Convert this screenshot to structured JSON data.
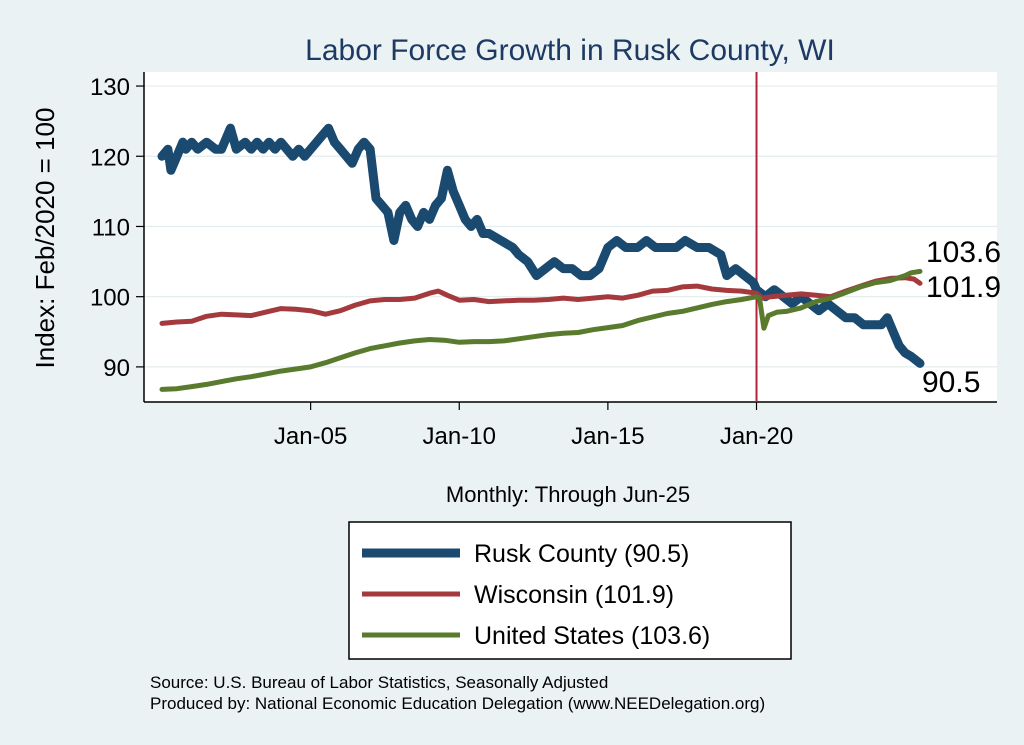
{
  "chart_data": {
    "type": "line",
    "title": "Labor Force Growth in Rusk  County, WI",
    "ylabel": "Index: Feb/2020 = 100",
    "xlabel": "Monthly: Through Jun-25",
    "ylim": [
      85,
      132
    ],
    "yticks": [
      90,
      100,
      110,
      120,
      130
    ],
    "xticks": [
      {
        "label": "Jan-05",
        "year": 2005.0
      },
      {
        "label": "Jan-10",
        "year": 2010.0
      },
      {
        "label": "Jan-15",
        "year": 2015.0
      },
      {
        "label": "Jan-20",
        "year": 2020.0
      }
    ],
    "xlim": [
      2000.0,
      2025.5
    ],
    "vline": {
      "year": 2020.0,
      "color": "#b0243c"
    },
    "grid": true,
    "legend_position": "bottom",
    "series": [
      {
        "name": "Rusk  County (90.5)",
        "color": "#1b4a70",
        "end_label": "90.5",
        "points": [
          [
            2000.0,
            120
          ],
          [
            2000.2,
            121
          ],
          [
            2000.3,
            118
          ],
          [
            2000.5,
            120
          ],
          [
            2000.7,
            122
          ],
          [
            2000.8,
            121
          ],
          [
            2001.0,
            122
          ],
          [
            2001.2,
            121
          ],
          [
            2001.5,
            122
          ],
          [
            2001.8,
            121
          ],
          [
            2002.0,
            121
          ],
          [
            2002.3,
            124
          ],
          [
            2002.5,
            121
          ],
          [
            2002.8,
            122
          ],
          [
            2003.0,
            121
          ],
          [
            2003.2,
            122
          ],
          [
            2003.4,
            121
          ],
          [
            2003.6,
            122
          ],
          [
            2003.8,
            121
          ],
          [
            2004.0,
            122
          ],
          [
            2004.2,
            121
          ],
          [
            2004.4,
            120
          ],
          [
            2004.6,
            121
          ],
          [
            2004.8,
            120
          ],
          [
            2005.0,
            121
          ],
          [
            2005.2,
            122
          ],
          [
            2005.4,
            123
          ],
          [
            2005.6,
            124
          ],
          [
            2005.8,
            122
          ],
          [
            2006.0,
            121
          ],
          [
            2006.2,
            120
          ],
          [
            2006.4,
            119
          ],
          [
            2006.6,
            121
          ],
          [
            2006.8,
            122
          ],
          [
            2007.0,
            121
          ],
          [
            2007.2,
            114
          ],
          [
            2007.4,
            113
          ],
          [
            2007.6,
            112
          ],
          [
            2007.8,
            108
          ],
          [
            2008.0,
            112
          ],
          [
            2008.2,
            113
          ],
          [
            2008.4,
            111
          ],
          [
            2008.6,
            110
          ],
          [
            2008.8,
            112
          ],
          [
            2009.0,
            111
          ],
          [
            2009.2,
            113
          ],
          [
            2009.4,
            114
          ],
          [
            2009.6,
            118
          ],
          [
            2009.8,
            115
          ],
          [
            2010.0,
            113
          ],
          [
            2010.2,
            111
          ],
          [
            2010.4,
            110
          ],
          [
            2010.6,
            111
          ],
          [
            2010.8,
            109
          ],
          [
            2011.0,
            109
          ],
          [
            2011.4,
            108
          ],
          [
            2011.8,
            107
          ],
          [
            2012.0,
            106
          ],
          [
            2012.3,
            105
          ],
          [
            2012.6,
            103
          ],
          [
            2012.9,
            104
          ],
          [
            2013.2,
            105
          ],
          [
            2013.5,
            104
          ],
          [
            2013.8,
            104
          ],
          [
            2014.1,
            103
          ],
          [
            2014.4,
            103
          ],
          [
            2014.7,
            104
          ],
          [
            2015.0,
            107
          ],
          [
            2015.3,
            108
          ],
          [
            2015.6,
            107
          ],
          [
            2016.0,
            107
          ],
          [
            2016.3,
            108
          ],
          [
            2016.6,
            107
          ],
          [
            2017.0,
            107
          ],
          [
            2017.3,
            107
          ],
          [
            2017.6,
            108
          ],
          [
            2018.0,
            107
          ],
          [
            2018.4,
            107
          ],
          [
            2018.8,
            106
          ],
          [
            2019.0,
            103
          ],
          [
            2019.3,
            104
          ],
          [
            2019.6,
            103
          ],
          [
            2019.9,
            102
          ],
          [
            2020.0,
            101
          ],
          [
            2020.3,
            100
          ],
          [
            2020.6,
            101
          ],
          [
            2020.9,
            100
          ],
          [
            2021.2,
            99
          ],
          [
            2021.5,
            100
          ],
          [
            2021.8,
            99
          ],
          [
            2022.1,
            98
          ],
          [
            2022.4,
            99
          ],
          [
            2022.7,
            98
          ],
          [
            2023.0,
            97
          ],
          [
            2023.3,
            97
          ],
          [
            2023.6,
            96
          ],
          [
            2023.9,
            96
          ],
          [
            2024.2,
            96
          ],
          [
            2024.4,
            97
          ],
          [
            2024.6,
            95
          ],
          [
            2024.8,
            93
          ],
          [
            2025.0,
            92
          ],
          [
            2025.2,
            91.5
          ],
          [
            2025.5,
            90.5
          ]
        ]
      },
      {
        "name": "Wisconsin (101.9)",
        "color": "#a43a3e",
        "end_label": "101.9",
        "points": [
          [
            2000.0,
            96.2
          ],
          [
            2000.5,
            96.4
          ],
          [
            2001.0,
            96.5
          ],
          [
            2001.5,
            97.2
          ],
          [
            2002.0,
            97.5
          ],
          [
            2002.5,
            97.4
          ],
          [
            2003.0,
            97.3
          ],
          [
            2003.5,
            97.8
          ],
          [
            2004.0,
            98.3
          ],
          [
            2004.5,
            98.2
          ],
          [
            2005.0,
            98.0
          ],
          [
            2005.5,
            97.5
          ],
          [
            2006.0,
            98.0
          ],
          [
            2006.5,
            98.8
          ],
          [
            2007.0,
            99.4
          ],
          [
            2007.5,
            99.6
          ],
          [
            2008.0,
            99.6
          ],
          [
            2008.5,
            99.8
          ],
          [
            2009.0,
            100.5
          ],
          [
            2009.3,
            100.8
          ],
          [
            2009.6,
            100.2
          ],
          [
            2010.0,
            99.5
          ],
          [
            2010.5,
            99.6
          ],
          [
            2011.0,
            99.3
          ],
          [
            2011.5,
            99.4
          ],
          [
            2012.0,
            99.5
          ],
          [
            2012.5,
            99.5
          ],
          [
            2013.0,
            99.6
          ],
          [
            2013.5,
            99.8
          ],
          [
            2014.0,
            99.6
          ],
          [
            2014.5,
            99.8
          ],
          [
            2015.0,
            100.0
          ],
          [
            2015.5,
            99.8
          ],
          [
            2016.0,
            100.2
          ],
          [
            2016.5,
            100.8
          ],
          [
            2017.0,
            100.9
          ],
          [
            2017.5,
            101.4
          ],
          [
            2018.0,
            101.5
          ],
          [
            2018.5,
            101.1
          ],
          [
            2019.0,
            100.9
          ],
          [
            2019.5,
            100.8
          ],
          [
            2020.0,
            100.5
          ],
          [
            2020.2,
            99.8
          ],
          [
            2020.5,
            100.0
          ],
          [
            2021.0,
            100.2
          ],
          [
            2021.5,
            100.4
          ],
          [
            2022.0,
            100.2
          ],
          [
            2022.5,
            100.0
          ],
          [
            2023.0,
            100.8
          ],
          [
            2023.5,
            101.5
          ],
          [
            2024.0,
            102.2
          ],
          [
            2024.5,
            102.6
          ],
          [
            2025.0,
            102.7
          ],
          [
            2025.3,
            102.5
          ],
          [
            2025.5,
            101.9
          ]
        ]
      },
      {
        "name": "United States (103.6)",
        "color": "#5a7a2e",
        "end_label": "103.6",
        "points": [
          [
            2000.0,
            86.8
          ],
          [
            2000.5,
            86.9
          ],
          [
            2001.0,
            87.2
          ],
          [
            2001.5,
            87.5
          ],
          [
            2002.0,
            87.9
          ],
          [
            2002.5,
            88.3
          ],
          [
            2003.0,
            88.6
          ],
          [
            2003.5,
            89.0
          ],
          [
            2004.0,
            89.4
          ],
          [
            2004.5,
            89.7
          ],
          [
            2005.0,
            90.0
          ],
          [
            2005.5,
            90.6
          ],
          [
            2006.0,
            91.3
          ],
          [
            2006.5,
            92.0
          ],
          [
            2007.0,
            92.6
          ],
          [
            2007.5,
            93.0
          ],
          [
            2008.0,
            93.4
          ],
          [
            2008.5,
            93.7
          ],
          [
            2009.0,
            93.9
          ],
          [
            2009.5,
            93.8
          ],
          [
            2010.0,
            93.5
          ],
          [
            2010.5,
            93.6
          ],
          [
            2011.0,
            93.6
          ],
          [
            2011.5,
            93.7
          ],
          [
            2012.0,
            94.0
          ],
          [
            2012.5,
            94.3
          ],
          [
            2013.0,
            94.6
          ],
          [
            2013.5,
            94.8
          ],
          [
            2014.0,
            94.9
          ],
          [
            2014.5,
            95.3
          ],
          [
            2015.0,
            95.6
          ],
          [
            2015.5,
            95.9
          ],
          [
            2016.0,
            96.6
          ],
          [
            2016.5,
            97.1
          ],
          [
            2017.0,
            97.6
          ],
          [
            2017.5,
            97.9
          ],
          [
            2018.0,
            98.4
          ],
          [
            2018.5,
            98.9
          ],
          [
            2019.0,
            99.3
          ],
          [
            2019.5,
            99.6
          ],
          [
            2020.0,
            100.0
          ],
          [
            2020.1,
            99.8
          ],
          [
            2020.25,
            95.5
          ],
          [
            2020.4,
            97.3
          ],
          [
            2020.7,
            97.8
          ],
          [
            2021.0,
            97.9
          ],
          [
            2021.5,
            98.4
          ],
          [
            2022.0,
            99.3
          ],
          [
            2022.5,
            99.8
          ],
          [
            2023.0,
            100.6
          ],
          [
            2023.5,
            101.4
          ],
          [
            2024.0,
            102.0
          ],
          [
            2024.5,
            102.3
          ],
          [
            2025.0,
            103.0
          ],
          [
            2025.2,
            103.4
          ],
          [
            2025.5,
            103.6
          ]
        ]
      }
    ],
    "source_note": "Source: U.S. Bureau of Labor Statistics, Seasonally Adjusted",
    "produced_note": "Produced by: National Economic Education Delegation (www.NEEDelegation.org)"
  }
}
